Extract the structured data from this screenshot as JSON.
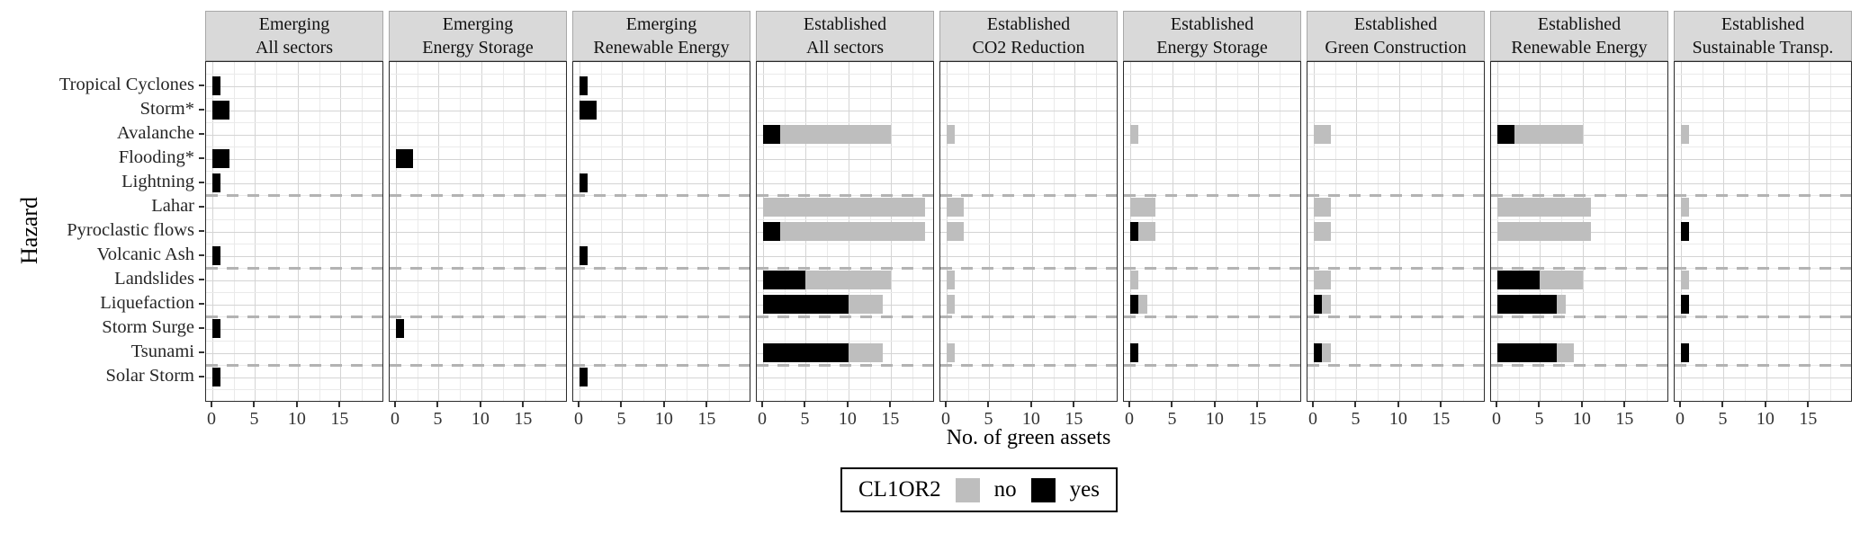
{
  "y_axis": {
    "title": "Hazard",
    "categories": [
      "Tropical Cyclones",
      "Storm*",
      "Avalanche",
      "Flooding*",
      "Lightning",
      "Lahar",
      "Pyroclastic flows",
      "Volcanic Ash",
      "Landslides",
      "Liquefaction",
      "Storm Surge",
      "Tsunami",
      "Solar Storm"
    ]
  },
  "x_axis": {
    "title": "No. of green assets",
    "ticks": [
      0,
      5,
      10,
      15
    ],
    "max": 19.6
  },
  "legend": {
    "title": "CL1OR2",
    "items": [
      {
        "label": "no",
        "color": "#BEBEBE"
      },
      {
        "label": "yes",
        "color": "#000000"
      }
    ]
  },
  "chart_data": {
    "type": "bar",
    "orientation": "horizontal",
    "stacked": true,
    "grid": "on",
    "legend_position": "bottom",
    "title": "",
    "xlabel": "No. of green assets",
    "ylabel": "Hazard",
    "xlim": [
      0,
      19.6
    ],
    "categories": [
      "Tropical Cyclones",
      "Storm*",
      "Avalanche",
      "Flooding*",
      "Lightning",
      "Lahar",
      "Pyroclastic flows",
      "Volcanic Ash",
      "Landslides",
      "Liquefaction",
      "Storm Surge",
      "Tsunami",
      "Solar Storm"
    ],
    "group_separators_after_category_index": [
      4,
      7,
      9,
      11
    ],
    "panels": [
      {
        "group": "Emerging",
        "sector": "All sectors",
        "yes": [
          1,
          2,
          0,
          2,
          1,
          0,
          0,
          1,
          0,
          0,
          1,
          0,
          1
        ],
        "no": [
          0,
          0,
          0,
          0,
          0,
          0,
          0,
          0,
          0,
          0,
          0,
          0,
          0
        ]
      },
      {
        "group": "Emerging",
        "sector": "Energy Storage",
        "yes": [
          0,
          0,
          0,
          2,
          0,
          0,
          0,
          0,
          0,
          0,
          1,
          0,
          0
        ],
        "no": [
          0,
          0,
          0,
          0,
          0,
          0,
          0,
          0,
          0,
          0,
          0,
          0,
          0
        ]
      },
      {
        "group": "Emerging",
        "sector": "Renewable Energy",
        "yes": [
          1,
          2,
          0,
          0,
          1,
          0,
          0,
          1,
          0,
          0,
          0,
          0,
          1
        ],
        "no": [
          0,
          0,
          0,
          0,
          0,
          0,
          0,
          0,
          0,
          0,
          0,
          0,
          0
        ]
      },
      {
        "group": "Established",
        "sector": "All sectors",
        "yes": [
          0,
          0,
          2,
          0,
          0,
          0,
          2,
          0,
          5,
          10,
          0,
          10,
          0
        ],
        "no": [
          0,
          0,
          13,
          0,
          0,
          19,
          17,
          0,
          10,
          4,
          0,
          4,
          0
        ]
      },
      {
        "group": "Established",
        "sector": "CO2 Reduction",
        "yes": [
          0,
          0,
          0,
          0,
          0,
          0,
          0,
          0,
          0,
          0,
          0,
          0,
          0
        ],
        "no": [
          0,
          0,
          1,
          0,
          0,
          2,
          2,
          0,
          1,
          1,
          0,
          1,
          0
        ]
      },
      {
        "group": "Established",
        "sector": "Energy Storage",
        "yes": [
          0,
          0,
          0,
          0,
          0,
          0,
          1,
          0,
          0,
          1,
          0,
          1,
          0
        ],
        "no": [
          0,
          0,
          1,
          0,
          0,
          3,
          2,
          0,
          1,
          1,
          0,
          0,
          0
        ]
      },
      {
        "group": "Established",
        "sector": "Green Construction",
        "yes": [
          0,
          0,
          0,
          0,
          0,
          0,
          0,
          0,
          0,
          1,
          0,
          1,
          0
        ],
        "no": [
          0,
          0,
          2,
          0,
          0,
          2,
          2,
          0,
          2,
          1,
          0,
          1,
          0
        ]
      },
      {
        "group": "Established",
        "sector": "Renewable Energy",
        "yes": [
          0,
          0,
          2,
          0,
          0,
          0,
          0,
          0,
          5,
          7,
          0,
          7,
          0
        ],
        "no": [
          0,
          0,
          8,
          0,
          0,
          11,
          11,
          0,
          5,
          1,
          0,
          2,
          0
        ]
      },
      {
        "group": "Established",
        "sector": "Sustainable Transp.",
        "yes": [
          0,
          0,
          0,
          0,
          0,
          0,
          1,
          0,
          0,
          1,
          0,
          1,
          0
        ],
        "no": [
          0,
          0,
          1,
          0,
          0,
          1,
          0,
          0,
          1,
          0,
          0,
          0,
          0
        ]
      }
    ],
    "series_colors": {
      "yes": "#000000",
      "no": "#BEBEBE"
    }
  }
}
